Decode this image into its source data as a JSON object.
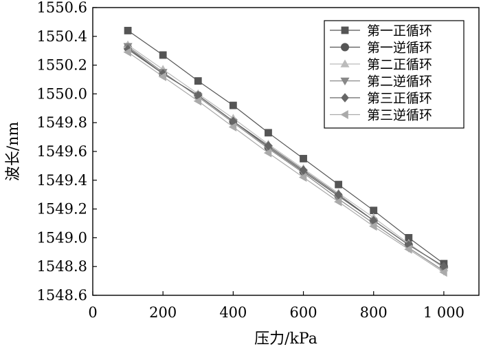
{
  "chart_data": {
    "type": "line",
    "title": "",
    "xlabel": "压力/kPa",
    "ylabel": "波长/nm",
    "xlim": [
      0,
      1100
    ],
    "ylim": [
      1548.6,
      1550.6
    ],
    "x_ticks": [
      0,
      200,
      400,
      600,
      800,
      1000
    ],
    "x_tick_labels": [
      "0",
      "200",
      "400",
      "600",
      "800",
      "1 000"
    ],
    "y_ticks": [
      1548.6,
      1548.8,
      1549.0,
      1549.2,
      1549.4,
      1549.6,
      1549.8,
      1550.0,
      1550.2,
      1550.4,
      1550.6
    ],
    "y_tick_labels": [
      "1548.6",
      "1548.8",
      "1549.0",
      "1549.2",
      "1549.4",
      "1549.6",
      "1549.8",
      "1550.0",
      "1550.2",
      "1550.4",
      "1550.6"
    ],
    "grid": false,
    "legend_position": "top-right",
    "x": [
      100,
      200,
      300,
      400,
      500,
      600,
      700,
      800,
      900,
      1000
    ],
    "series": [
      {
        "name": "第一正循环",
        "marker": "square",
        "color": "#555555",
        "values": [
          1550.44,
          1550.27,
          1550.09,
          1549.92,
          1549.73,
          1549.55,
          1549.37,
          1549.19,
          1549.0,
          1548.82
        ]
      },
      {
        "name": "第一逆循环",
        "marker": "circle",
        "color": "#555555",
        "values": [
          1550.32,
          1550.14,
          1549.99,
          1549.81,
          1549.63,
          1549.46,
          1549.29,
          1549.12,
          1548.95,
          1548.8
        ]
      },
      {
        "name": "第二正循环",
        "marker": "triangle-up",
        "color": "#bbbbbb",
        "values": [
          1550.34,
          1550.17,
          1550.0,
          1549.83,
          1549.65,
          1549.48,
          1549.31,
          1549.14,
          1548.96,
          1548.79
        ]
      },
      {
        "name": "第二逆循环",
        "marker": "triangle-down",
        "color": "#888888",
        "values": [
          1550.33,
          1550.15,
          1549.98,
          1549.8,
          1549.62,
          1549.45,
          1549.27,
          1549.1,
          1548.93,
          1548.77
        ]
      },
      {
        "name": "第三正循环",
        "marker": "diamond",
        "color": "#666666",
        "values": [
          1550.31,
          1550.14,
          1549.99,
          1549.81,
          1549.64,
          1549.47,
          1549.3,
          1549.12,
          1548.95,
          1548.8
        ]
      },
      {
        "name": "第三逆循环",
        "marker": "triangle-left",
        "color": "#aaaaaa",
        "values": [
          1550.29,
          1550.12,
          1549.95,
          1549.77,
          1549.59,
          1549.42,
          1549.25,
          1549.08,
          1548.92,
          1548.76
        ]
      }
    ]
  }
}
